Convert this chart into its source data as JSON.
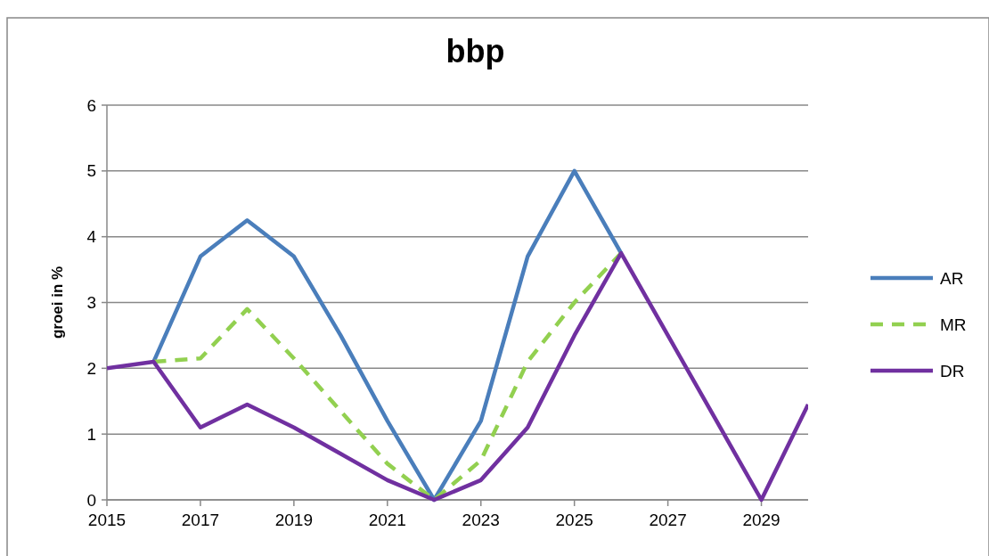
{
  "chart_data": {
    "type": "line",
    "title": "bbp",
    "ylabel": "groei in %",
    "x": [
      2015,
      2016,
      2017,
      2018,
      2019,
      2020,
      2021,
      2022,
      2023,
      2024,
      2025,
      2026,
      2027,
      2028,
      2029,
      2030
    ],
    "series": [
      {
        "name": "AR",
        "color": "#4a7ebb",
        "line_style": "solid",
        "values": [
          null,
          2.1,
          3.7,
          4.25,
          3.7,
          2.5,
          1.2,
          0,
          1.2,
          3.7,
          5.0,
          3.75,
          null,
          null,
          null,
          null
        ]
      },
      {
        "name": "MR",
        "color": "#92d050",
        "line_style": "dashed",
        "values": [
          null,
          2.1,
          2.15,
          2.9,
          2.15,
          1.35,
          0.55,
          0,
          0.6,
          2.1,
          3.0,
          3.75,
          null,
          null,
          null,
          null
        ]
      },
      {
        "name": "DR",
        "color": "#7030a0",
        "line_style": "solid",
        "values": [
          2.0,
          2.1,
          1.1,
          1.45,
          1.1,
          0.7,
          0.3,
          0,
          0.3,
          1.1,
          2.5,
          3.75,
          2.5,
          1.25,
          0,
          1.45
        ]
      }
    ],
    "xlim": [
      2015,
      2030
    ],
    "xticks": [
      2015,
      2017,
      2019,
      2021,
      2023,
      2025,
      2027,
      2029
    ],
    "ylim": [
      0,
      6
    ],
    "yticks": [
      0,
      1,
      2,
      3,
      4,
      5,
      6
    ],
    "grid": "y",
    "legend": "right",
    "marker": "none"
  }
}
